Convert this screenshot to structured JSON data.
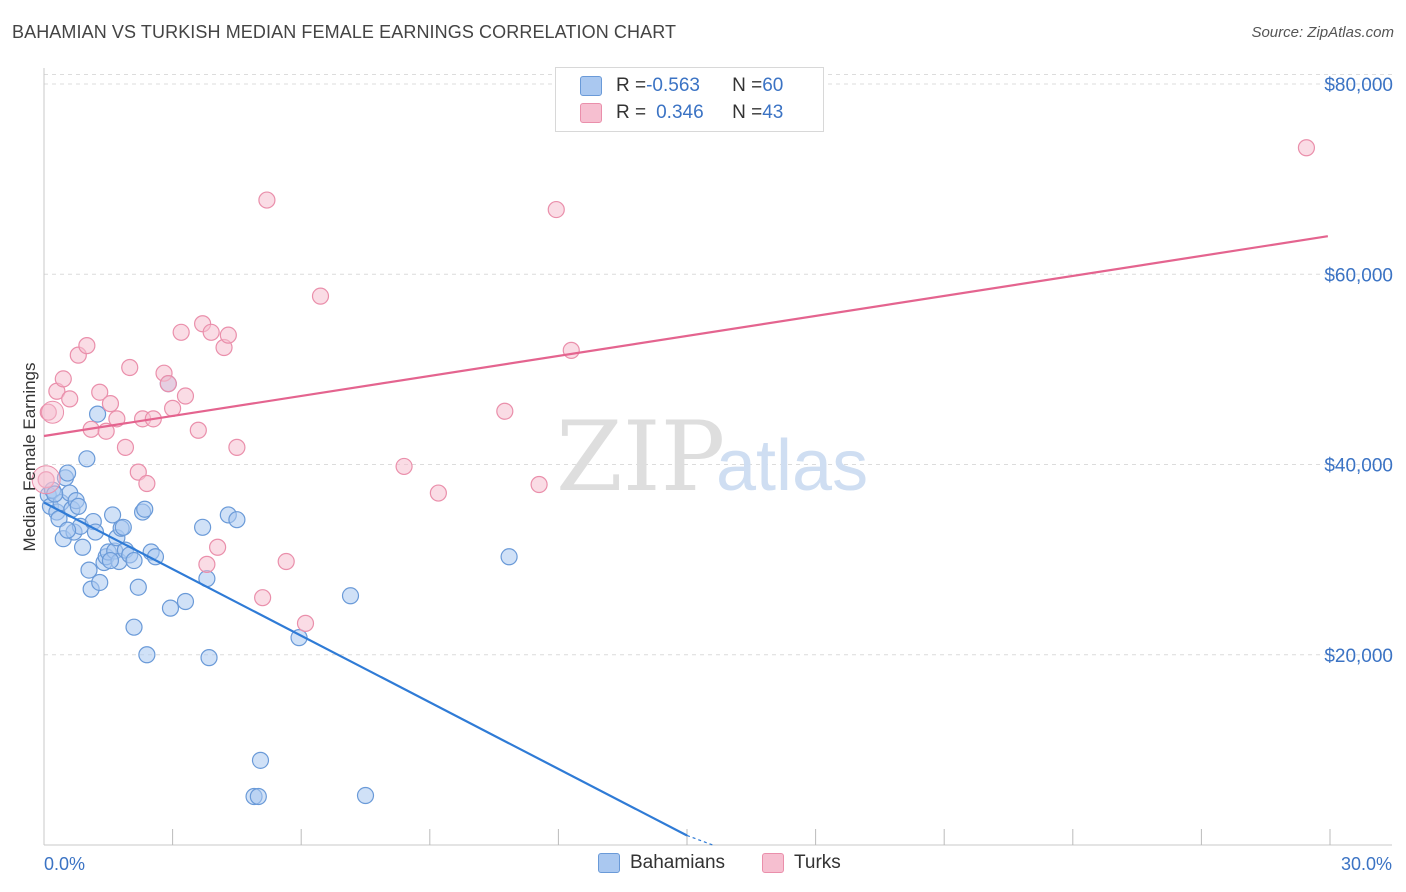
{
  "title": "BAHAMIAN VS TURKISH MEDIAN FEMALE EARNINGS CORRELATION CHART",
  "source": "Source: ZipAtlas.com",
  "watermark": {
    "zip": "ZIP",
    "atlas": "atlas"
  },
  "legend": {
    "rows": [
      {
        "r_label": "R = ",
        "r_value": "-0.563",
        "n_label": "N = ",
        "n_value": "60"
      },
      {
        "r_label": "R = ",
        "r_value": "0.346",
        "n_label": "N = ",
        "n_value": "43"
      }
    ]
  },
  "colors": {
    "bahamians_fill": "#aac8f0",
    "bahamians_stroke": "#6a9ad8",
    "bahamians_line": "#2f7bd6",
    "turks_fill": "#f6bfd0",
    "turks_stroke": "#ea8fab",
    "turks_line": "#e4648f",
    "axis_text": "#3b73c4",
    "grid": "#dcdcdc"
  },
  "chart_data": {
    "type": "scatter",
    "title": "BAHAMIAN VS TURKISH MEDIAN FEMALE EARNINGS CORRELATION CHART",
    "xlabel": "",
    "ylabel": "Median Female Earnings",
    "xlim": [
      0,
      30
    ],
    "ylim": [
      0,
      82000
    ],
    "x_tick_labels": [
      "0.0%",
      "30.0%"
    ],
    "y_ticks": [
      20000,
      40000,
      60000,
      80000
    ],
    "y_tick_labels": [
      "$20,000",
      "$40,000",
      "$60,000",
      "$80,000"
    ],
    "series": [
      {
        "name": "Bahamians",
        "trend": {
          "x": [
            0,
            15.0
          ],
          "y": [
            36000,
            1000
          ],
          "dashed_to": [
            15.6,
            0
          ]
        },
        "points": [
          [
            0.1,
            36800
          ],
          [
            0.15,
            35600
          ],
          [
            0.2,
            37300
          ],
          [
            0.3,
            35000
          ],
          [
            0.35,
            34300
          ],
          [
            0.4,
            36000
          ],
          [
            0.45,
            32200
          ],
          [
            0.5,
            38600
          ],
          [
            0.55,
            39100
          ],
          [
            0.6,
            37000
          ],
          [
            0.65,
            35300
          ],
          [
            0.7,
            32900
          ],
          [
            0.75,
            36200
          ],
          [
            0.8,
            35600
          ],
          [
            0.85,
            33500
          ],
          [
            0.9,
            31300
          ],
          [
            1.0,
            40600
          ],
          [
            1.05,
            28900
          ],
          [
            1.1,
            26900
          ],
          [
            1.15,
            34000
          ],
          [
            1.2,
            32900
          ],
          [
            1.25,
            45300
          ],
          [
            1.3,
            27600
          ],
          [
            1.4,
            29700
          ],
          [
            1.45,
            30300
          ],
          [
            1.5,
            30800
          ],
          [
            1.6,
            34700
          ],
          [
            1.65,
            30900
          ],
          [
            1.7,
            32300
          ],
          [
            1.75,
            29800
          ],
          [
            1.8,
            33300
          ],
          [
            1.85,
            33400
          ],
          [
            1.9,
            31000
          ],
          [
            2.0,
            30500
          ],
          [
            2.1,
            29900
          ],
          [
            2.2,
            27100
          ],
          [
            2.1,
            22900
          ],
          [
            2.3,
            35000
          ],
          [
            2.4,
            20000
          ],
          [
            2.5,
            30800
          ],
          [
            2.6,
            30300
          ],
          [
            2.9,
            48500
          ],
          [
            2.95,
            24900
          ],
          [
            3.3,
            25600
          ],
          [
            3.7,
            33400
          ],
          [
            3.8,
            28000
          ],
          [
            3.85,
            19700
          ],
          [
            4.3,
            34700
          ],
          [
            4.5,
            34200
          ],
          [
            4.9,
            5100
          ],
          [
            5.0,
            5100
          ],
          [
            5.05,
            8900
          ],
          [
            5.95,
            21800
          ],
          [
            7.15,
            26200
          ],
          [
            7.5,
            5200
          ],
          [
            10.85,
            30300
          ],
          [
            0.25,
            36900
          ],
          [
            0.55,
            33100
          ],
          [
            1.55,
            29900
          ],
          [
            2.35,
            35300
          ]
        ]
      },
      {
        "name": "Turks",
        "trend": {
          "x": [
            0,
            29.95
          ],
          "y": [
            43000,
            64000
          ]
        },
        "points": [
          [
            0.05,
            38400
          ],
          [
            0.1,
            45500
          ],
          [
            0.3,
            47700
          ],
          [
            0.45,
            49000
          ],
          [
            0.6,
            46900
          ],
          [
            0.8,
            51500
          ],
          [
            1.0,
            52500
          ],
          [
            1.1,
            43700
          ],
          [
            1.3,
            47600
          ],
          [
            1.45,
            43500
          ],
          [
            1.55,
            46400
          ],
          [
            1.7,
            44800
          ],
          [
            1.9,
            41800
          ],
          [
            2.0,
            50200
          ],
          [
            2.2,
            39200
          ],
          [
            2.3,
            44800
          ],
          [
            2.4,
            38000
          ],
          [
            2.55,
            44800
          ],
          [
            2.8,
            49600
          ],
          [
            2.9,
            48500
          ],
          [
            3.0,
            45900
          ],
          [
            3.2,
            53900
          ],
          [
            3.3,
            47200
          ],
          [
            3.6,
            43600
          ],
          [
            3.8,
            29500
          ],
          [
            3.7,
            54800
          ],
          [
            3.9,
            53900
          ],
          [
            4.05,
            31300
          ],
          [
            4.2,
            52300
          ],
          [
            4.3,
            53600
          ],
          [
            4.5,
            41800
          ],
          [
            5.1,
            26000
          ],
          [
            5.2,
            67800
          ],
          [
            5.65,
            29800
          ],
          [
            6.1,
            23300
          ],
          [
            6.45,
            57700
          ],
          [
            8.4,
            39800
          ],
          [
            9.2,
            37000
          ],
          [
            10.75,
            45600
          ],
          [
            11.55,
            37900
          ],
          [
            11.95,
            66800
          ],
          [
            12.3,
            52000
          ],
          [
            29.45,
            73300
          ]
        ]
      }
    ]
  },
  "bottom_legend": {
    "bahamians": "Bahamians",
    "turks": "Turks"
  }
}
